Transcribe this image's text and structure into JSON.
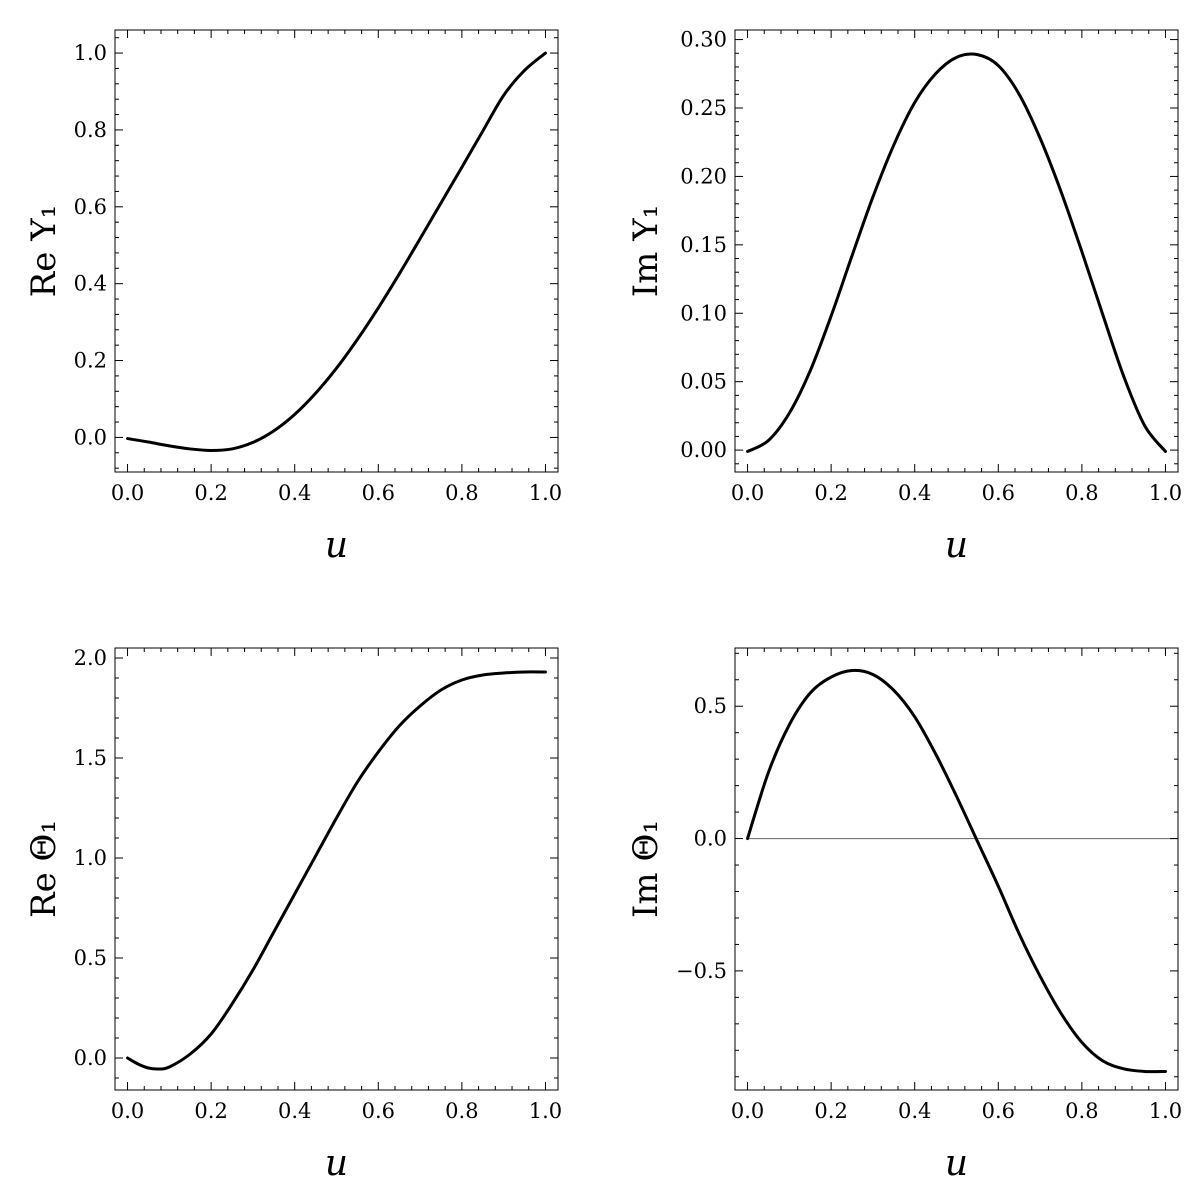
{
  "chart_data": [
    {
      "type": "line",
      "xlabel": "u",
      "ylabel": "Re Y₁",
      "xlim": [
        -0.03,
        1.03
      ],
      "ylim": [
        -0.09,
        1.06
      ],
      "xticks": [
        "0.0",
        "0.2",
        "0.4",
        "0.6",
        "0.8",
        "1.0"
      ],
      "xtick_values": [
        0,
        0.2,
        0.4,
        0.6,
        0.8,
        1.0
      ],
      "yticks": [
        "0.0",
        "0.2",
        "0.4",
        "0.6",
        "0.8",
        "1.0"
      ],
      "ytick_values": [
        0,
        0.2,
        0.4,
        0.6,
        0.8,
        1.0
      ],
      "zero_line": false,
      "series": [
        {
          "x": [
            0,
            0.05,
            0.1,
            0.15,
            0.2,
            0.25,
            0.3,
            0.35,
            0.4,
            0.45,
            0.5,
            0.55,
            0.6,
            0.65,
            0.7,
            0.75,
            0.8,
            0.85,
            0.9,
            0.95,
            1.0
          ],
          "y": [
            -0.003,
            -0.012,
            -0.022,
            -0.03,
            -0.034,
            -0.03,
            -0.013,
            0.017,
            0.06,
            0.115,
            0.18,
            0.255,
            0.337,
            0.425,
            0.517,
            0.61,
            0.703,
            0.797,
            0.89,
            0.955,
            1.0
          ]
        }
      ]
    },
    {
      "type": "line",
      "xlabel": "u",
      "ylabel": "Im Y₁",
      "xlim": [
        -0.03,
        1.03
      ],
      "ylim": [
        -0.016,
        0.307
      ],
      "xticks": [
        "0.0",
        "0.2",
        "0.4",
        "0.6",
        "0.8",
        "1.0"
      ],
      "xtick_values": [
        0,
        0.2,
        0.4,
        0.6,
        0.8,
        1.0
      ],
      "yticks": [
        "0.00",
        "0.05",
        "0.10",
        "0.15",
        "0.20",
        "0.25",
        "0.30"
      ],
      "ytick_values": [
        0,
        0.05,
        0.1,
        0.15,
        0.2,
        0.25,
        0.3
      ],
      "zero_line": false,
      "series": [
        {
          "x": [
            0,
            0.05,
            0.1,
            0.15,
            0.2,
            0.25,
            0.3,
            0.35,
            0.4,
            0.45,
            0.5,
            0.55,
            0.6,
            0.65,
            0.7,
            0.75,
            0.8,
            0.85,
            0.9,
            0.95,
            1.0
          ],
          "y": [
            -0.001,
            0.007,
            0.027,
            0.058,
            0.098,
            0.142,
            0.185,
            0.223,
            0.254,
            0.275,
            0.287,
            0.289,
            0.281,
            0.26,
            0.228,
            0.189,
            0.145,
            0.099,
            0.054,
            0.018,
            -0.001
          ]
        }
      ]
    },
    {
      "type": "line",
      "xlabel": "u",
      "ylabel": "Re Θ₁",
      "xlim": [
        -0.03,
        1.03
      ],
      "ylim": [
        -0.16,
        2.05
      ],
      "xticks": [
        "0.0",
        "0.2",
        "0.4",
        "0.6",
        "0.8",
        "1.0"
      ],
      "xtick_values": [
        0,
        0.2,
        0.4,
        0.6,
        0.8,
        1.0
      ],
      "yticks": [
        "0.0",
        "0.5",
        "1.0",
        "1.5",
        "2.0"
      ],
      "ytick_values": [
        0,
        0.5,
        1.0,
        1.5,
        2.0
      ],
      "zero_line": false,
      "series": [
        {
          "x": [
            0,
            0.025,
            0.05,
            0.075,
            0.1,
            0.15,
            0.2,
            0.25,
            0.3,
            0.35,
            0.4,
            0.45,
            0.5,
            0.55,
            0.6,
            0.65,
            0.7,
            0.75,
            0.8,
            0.85,
            0.9,
            0.95,
            1.0
          ],
          "y": [
            0.0,
            -0.03,
            -0.05,
            -0.055,
            -0.045,
            0.02,
            0.12,
            0.27,
            0.44,
            0.63,
            0.82,
            1.01,
            1.2,
            1.38,
            1.53,
            1.66,
            1.76,
            1.84,
            1.89,
            1.915,
            1.925,
            1.93,
            1.93
          ]
        }
      ]
    },
    {
      "type": "line",
      "xlabel": "u",
      "ylabel": "Im Θ₁",
      "xlim": [
        -0.03,
        1.03
      ],
      "ylim": [
        -0.95,
        0.72
      ],
      "xticks": [
        "0.0",
        "0.2",
        "0.4",
        "0.6",
        "0.8",
        "1.0"
      ],
      "xtick_values": [
        0,
        0.2,
        0.4,
        0.6,
        0.8,
        1.0
      ],
      "yticks": [
        "0.5",
        "0.0",
        "−0.5"
      ],
      "ytick_values": [
        0.5,
        0.0,
        -0.5
      ],
      "zero_line": true,
      "series": [
        {
          "x": [
            0,
            0.05,
            0.1,
            0.15,
            0.2,
            0.25,
            0.3,
            0.35,
            0.4,
            0.45,
            0.5,
            0.55,
            0.6,
            0.65,
            0.7,
            0.75,
            0.8,
            0.85,
            0.9,
            0.95,
            1.0
          ],
          "y": [
            0.0,
            0.25,
            0.43,
            0.55,
            0.61,
            0.635,
            0.62,
            0.56,
            0.46,
            0.32,
            0.16,
            -0.01,
            -0.18,
            -0.36,
            -0.52,
            -0.66,
            -0.77,
            -0.84,
            -0.87,
            -0.88,
            -0.88
          ]
        }
      ]
    }
  ]
}
